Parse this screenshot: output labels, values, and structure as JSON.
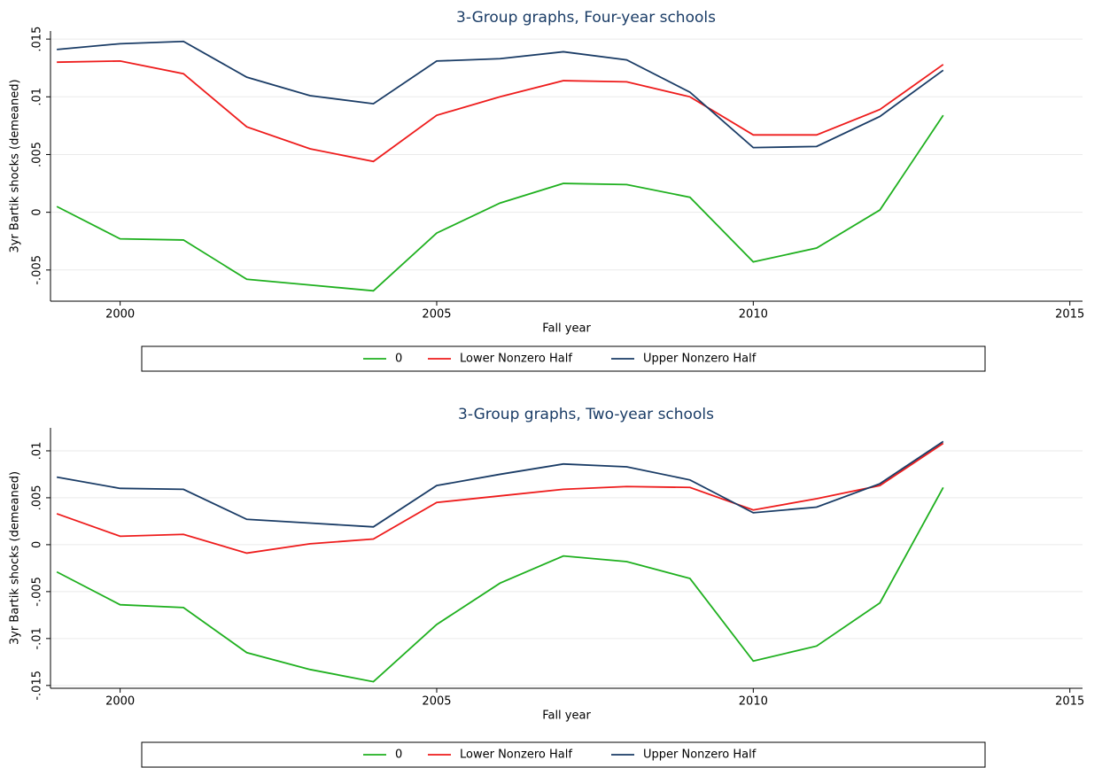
{
  "chart_data": [
    {
      "type": "line",
      "title": "3-Group graphs, Four-year schools",
      "xlabel": "Fall year",
      "ylabel": "3yr Bartik shocks (demeaned)",
      "x": [
        1999,
        2000,
        2001,
        2002,
        2003,
        2004,
        2005,
        2006,
        2007,
        2008,
        2009,
        2010,
        2011,
        2012,
        2013
      ],
      "series": [
        {
          "name": "0",
          "color": "#1fb01f",
          "values": [
            0.0005,
            -0.0023,
            -0.0024,
            -0.0058,
            -0.0063,
            -0.0068,
            -0.0018,
            0.0008,
            0.0025,
            0.0024,
            0.0013,
            -0.0043,
            -0.0031,
            0.0002,
            0.0084
          ]
        },
        {
          "name": "Lower Nonzero Half",
          "color": "#ee1c1c",
          "values": [
            0.013,
            0.0131,
            0.012,
            0.0074,
            0.0055,
            0.0044,
            0.0084,
            0.01,
            0.0114,
            0.0113,
            0.01,
            0.0067,
            0.0067,
            0.0089,
            0.0128
          ]
        },
        {
          "name": "Upper Nonzero Half",
          "color": "#1a3c66",
          "values": [
            0.0141,
            0.0146,
            0.0148,
            0.0117,
            0.0101,
            0.0094,
            0.0131,
            0.0133,
            0.0139,
            0.0132,
            0.0104,
            0.0056,
            0.0057,
            0.0083,
            0.0123
          ]
        }
      ],
      "xlim": [
        1998.9,
        2015.2
      ],
      "xticks": [
        2000,
        2005,
        2010,
        2015
      ],
      "ylim": [
        -0.0077,
        0.0157
      ],
      "yticks": [
        {
          "value": -0.005,
          "label": "-.005"
        },
        0,
        {
          "value": 0.005,
          "label": ".005"
        },
        {
          "value": 0.01,
          "label": ".01"
        },
        {
          "value": 0.015,
          "label": ".015"
        }
      ],
      "grid": true,
      "legend": "bottom"
    },
    {
      "type": "line",
      "title": "3-Group graphs, Two-year schools",
      "xlabel": "Fall year",
      "ylabel": "3yr Bartik shocks (demeaned)",
      "x": [
        1999,
        2000,
        2001,
        2002,
        2003,
        2004,
        2005,
        2006,
        2007,
        2008,
        2009,
        2010,
        2011,
        2012,
        2013
      ],
      "series": [
        {
          "name": "0",
          "color": "#1fb01f",
          "values": [
            -0.0029,
            -0.0064,
            -0.0067,
            -0.0115,
            -0.0133,
            -0.0146,
            -0.0085,
            -0.0041,
            -0.0012,
            -0.0018,
            -0.0036,
            -0.0124,
            -0.0108,
            -0.0062,
            0.0061
          ]
        },
        {
          "name": "Lower Nonzero Half",
          "color": "#ee1c1c",
          "values": [
            0.0033,
            0.0009,
            0.0011,
            -0.0009,
            0.0001,
            0.0006,
            0.0045,
            0.0052,
            0.0059,
            0.0062,
            0.0061,
            0.0037,
            0.0049,
            0.0063,
            0.0108
          ]
        },
        {
          "name": "Upper Nonzero Half",
          "color": "#1a3c66",
          "values": [
            0.0072,
            0.006,
            0.0059,
            0.0027,
            0.0023,
            0.0019,
            0.0063,
            0.0075,
            0.0086,
            0.0083,
            0.0069,
            0.0034,
            0.004,
            0.0065,
            0.011
          ]
        }
      ],
      "xlim": [
        1998.9,
        2015.2
      ],
      "xticks": [
        2000,
        2005,
        2010,
        2015
      ],
      "ylim": [
        -0.0153,
        0.01245
      ],
      "yticks": [
        {
          "value": -0.015,
          "label": "-.015"
        },
        {
          "value": -0.01,
          "label": "-.01"
        },
        {
          "value": -0.005,
          "label": "-.005"
        },
        0,
        {
          "value": 0.005,
          "label": ".005"
        },
        {
          "value": 0.01,
          "label": ".01"
        }
      ],
      "grid": true,
      "legend": "bottom"
    }
  ]
}
